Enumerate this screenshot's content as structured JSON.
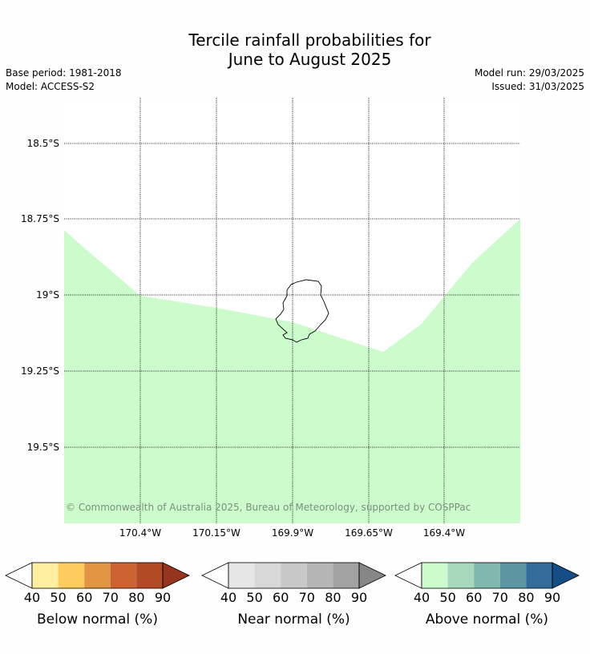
{
  "header": {
    "title_line1": "Tercile rainfall probabilities for",
    "title_line2": "June to August 2025",
    "base_period": "Base period: 1981-2018",
    "model": "Model: ACCESS-S2",
    "model_run": "Model run: 29/03/2025",
    "issued": "Issued: 31/03/2025"
  },
  "map": {
    "lat_labels": [
      "18.5°S",
      "18.75°S",
      "19°S",
      "19.25°S",
      "19.5°S"
    ],
    "lon_labels": [
      "170.4°W",
      "170.15°W",
      "169.9°W",
      "169.65°W",
      "169.4°W"
    ],
    "fill_color": "#ccfccc",
    "copyright": "© Commonwealth of Australia 2025, Bureau of Meteorology, supported by COSPPac"
  },
  "colorbars": [
    {
      "title": "Below normal (%)",
      "ticks": [
        "40",
        "50",
        "60",
        "70",
        "80",
        "90"
      ],
      "colors": [
        "#fff",
        "#ffeda0",
        "#fecc5c",
        "#e19544",
        "#cd6331",
        "#b14a25",
        "#97341e"
      ]
    },
    {
      "title": "Near normal (%)",
      "ticks": [
        "40",
        "50",
        "60",
        "70",
        "80",
        "90"
      ],
      "colors": [
        "#fff",
        "#e6e6e6",
        "#d8d8d8",
        "#c8c8c8",
        "#b5b5b5",
        "#a2a2a2",
        "#868686"
      ]
    },
    {
      "title": "Above normal (%)",
      "ticks": [
        "40",
        "50",
        "60",
        "70",
        "80",
        "90"
      ],
      "colors": [
        "#fff",
        "#ccfccc",
        "#a6d9bb",
        "#80b7af",
        "#5c95a3",
        "#336c9b",
        "#154e86"
      ]
    }
  ]
}
